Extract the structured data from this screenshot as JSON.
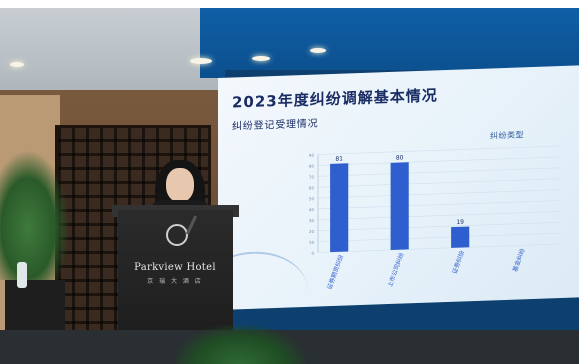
{
  "slide": {
    "title": "2023年度纠纷调解基本情况",
    "subtitle": "纠纷登记受理情况"
  },
  "podium": {
    "brand": "Parkview Hotel",
    "brand_sub": "京 瑞 大 酒 店"
  },
  "chart_data": {
    "type": "bar",
    "title": "",
    "xlabel": "",
    "ylabel": "",
    "legend": "纠纷类型",
    "categories": [
      "证券期货纠纷",
      "上市公司纠纷",
      "证券纠纷",
      "基金纠纷"
    ],
    "values": [
      81,
      80,
      19,
      null
    ],
    "data_labels": [
      "81",
      "80",
      "19",
      ""
    ],
    "ylim": [
      0,
      90
    ],
    "yticks": [
      0,
      10,
      20,
      30,
      40,
      50,
      60,
      70,
      80,
      90
    ],
    "colors": {
      "bar": "#2f5fcf",
      "grid": "#cfe0ef"
    }
  }
}
